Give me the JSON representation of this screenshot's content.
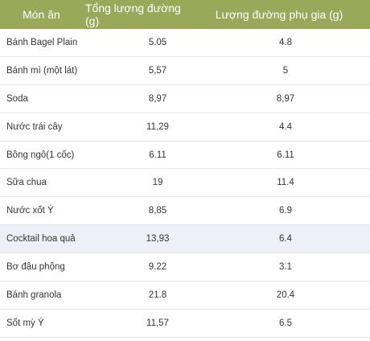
{
  "table": {
    "headers": [
      "Món ăn",
      "Tổng lượng đường (g)",
      "Lượng đường phụ gia (g)"
    ],
    "rows": [
      {
        "food": "Bánh Bagel Plain",
        "total": "5.05",
        "added": "4.8"
      },
      {
        "food": "Bánh mì (một lát)",
        "total": "5,57",
        "added": "5"
      },
      {
        "food": "Soda",
        "total": "8,97",
        "added": "8,97"
      },
      {
        "food": "Nước trái cây",
        "total": "11,29",
        "added": "4.4"
      },
      {
        "food": "Bông ngô(1 cốc)",
        "total": "6.11",
        "added": "6.11"
      },
      {
        "food": "Sữa chua",
        "total": "19",
        "added": "11.4"
      },
      {
        "food": "Nước xốt Ý",
        "total": "8,85",
        "added": "6.9"
      },
      {
        "food": "Cocktail hoa quả",
        "total": "13,93",
        "added": "6.4"
      },
      {
        "food": "Bơ đậu phộng",
        "total": "9.22",
        "added": "3.1"
      },
      {
        "food": "Bánh granola",
        "total": "21.8",
        "added": "20.4"
      },
      {
        "food": "Sốt mỳ Ý",
        "total": "11,57",
        "added": "6.5"
      }
    ]
  },
  "colors": {
    "header_bg": "#9aa85a",
    "highlight_row": "#eef0f8"
  }
}
